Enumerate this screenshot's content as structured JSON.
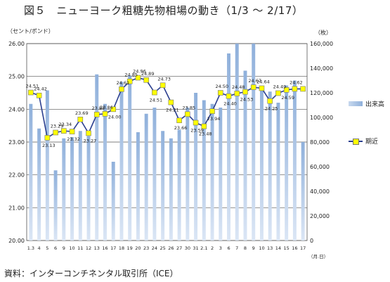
{
  "figure": {
    "title": "図５　ニューヨーク粗糖先物相場の動き（1/3 ～ 2/17）",
    "unit_left": "（セント/ポンド）",
    "unit_right": "（枚）",
    "source": "資料：インターコンチネンタル取引所（ICE）",
    "legend_volume": "出来高",
    "legend_futures": "期近",
    "x_unit": "（月.日）"
  },
  "colors": {
    "bar_top": "#8fb0db",
    "bar_bottom": "#dbe6f5",
    "line": "#2b3f8f",
    "marker": "#ffff00",
    "grid": "#555555"
  },
  "chart_data": {
    "type": "bar+line",
    "categories": [
      "1.3",
      "4",
      "5",
      "6",
      "9",
      "10",
      "11",
      "12",
      "13",
      "16",
      "17",
      "18",
      "19",
      "20",
      "23",
      "24",
      "25",
      "26",
      "27",
      "30",
      "31",
      "2.1",
      "2",
      "3",
      "6",
      "7",
      "8",
      "9",
      "10",
      "13",
      "14",
      "15",
      "16",
      "17"
    ],
    "y_left": {
      "label": "セント/ポンド",
      "min": 20.0,
      "max": 26.0,
      "ticks": [
        "20.00",
        "21.00",
        "22.00",
        "23.00",
        "24.00",
        "25.00",
        "26.00"
      ]
    },
    "y_right": {
      "label": "枚",
      "min": 0,
      "max": 160000,
      "ticks": [
        "0",
        "20,000",
        "40,000",
        "60,000",
        "80,000",
        "100,000",
        "120,000",
        "140,000",
        "160,000"
      ]
    },
    "series": [
      {
        "name": "出来高",
        "kind": "bar",
        "axis": "right",
        "values": [
          111000,
          91000,
          122000,
          57000,
          83000,
          84000,
          89000,
          85000,
          135000,
          111000,
          64000,
          129000,
          134000,
          88000,
          103000,
          108000,
          89000,
          83000,
          90000,
          108000,
          120000,
          114000,
          111000,
          108000,
          152000,
          160000,
          138000,
          165000,
          125000,
          121000,
          112000,
          126000,
          130000,
          80000
        ]
      },
      {
        "name": "期近",
        "kind": "line",
        "axis": "left",
        "values": [
          24.51,
          24.42,
          23.13,
          23.29,
          23.34,
          23.32,
          23.69,
          23.27,
          23.84,
          23.86,
          24.0,
          24.61,
          24.85,
          24.96,
          24.89,
          24.51,
          24.73,
          24.21,
          23.66,
          23.85,
          23.59,
          23.48,
          23.94,
          24.5,
          24.4,
          24.48,
          24.53,
          24.67,
          24.64,
          24.25,
          24.49,
          24.59,
          24.62,
          24.62
        ],
        "labels": [
          "24.51",
          "24.42",
          "23.13",
          "23.29",
          "23.34",
          "23.32",
          "23.69",
          "23.27",
          "23.84",
          "23.86",
          "24.00",
          "24.61",
          "24.85",
          "24.96",
          "24.89",
          "24.51",
          "24.73",
          "24.21",
          "23.66",
          "23.85",
          "23.59",
          "23.48",
          "23.94",
          "24.50",
          "24.40",
          "24.48",
          "24.53",
          "24.67",
          "24.64",
          "24.25",
          "24.49",
          "24.59",
          "24.62",
          ""
        ]
      }
    ],
    "grid": true
  }
}
